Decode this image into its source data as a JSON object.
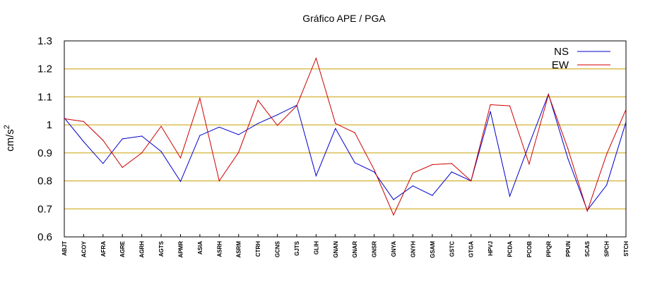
{
  "chart_data": {
    "type": "line",
    "title": "Gráfico  APE / PGA",
    "ylabel": "cm/s",
    "ylabel_superscript": "2",
    "xlabel": "",
    "ylim": [
      0.6,
      1.3
    ],
    "yticks": [
      0.6,
      0.7,
      0.8,
      0.9,
      1,
      1.1,
      1.2,
      1.3
    ],
    "ytick_labels": [
      "0.6",
      "0.7",
      "0.8",
      "0.9",
      "1",
      "1.1",
      "1.2",
      "1.3"
    ],
    "grid": "horizontal",
    "legend_position": "top-right",
    "categories": [
      "ABJT",
      "ACOY",
      "AFRA",
      "AGRE",
      "AGRH",
      "AGTS",
      "APMR",
      "ASIA",
      "ASRH",
      "ASRM",
      "CTRH",
      "GCNS",
      "GJTS",
      "GLIH",
      "GNAN",
      "GNAR",
      "GNSR",
      "GNYA",
      "GNYH",
      "GSAM",
      "GSTC",
      "GTGA",
      "HPVJ",
      "PCDA",
      "PCOB",
      "PPQR",
      "PPUN",
      "SCAS",
      "SPCH",
      "STCH"
    ],
    "series": [
      {
        "name": "NS",
        "color": "#0000cc",
        "values": [
          1.025,
          0.94,
          0.862,
          0.95,
          0.96,
          0.905,
          0.798,
          0.962,
          0.992,
          0.965,
          1.005,
          1.036,
          1.07,
          0.818,
          0.987,
          0.865,
          0.832,
          0.733,
          0.782,
          0.748,
          0.832,
          0.8,
          1.048,
          0.745,
          0.93,
          1.11,
          0.88,
          0.695,
          0.785,
          1.01
        ]
      },
      {
        "name": "EW",
        "color": "#cc0000",
        "values": [
          1.022,
          1.012,
          0.945,
          0.848,
          0.9,
          0.995,
          0.882,
          1.095,
          0.8,
          0.902,
          1.088,
          0.998,
          1.068,
          1.238,
          1.005,
          0.972,
          0.84,
          0.678,
          0.828,
          0.858,
          0.862,
          0.8,
          1.072,
          1.068,
          0.86,
          1.108,
          0.915,
          0.692,
          0.895,
          1.055
        ]
      }
    ]
  }
}
